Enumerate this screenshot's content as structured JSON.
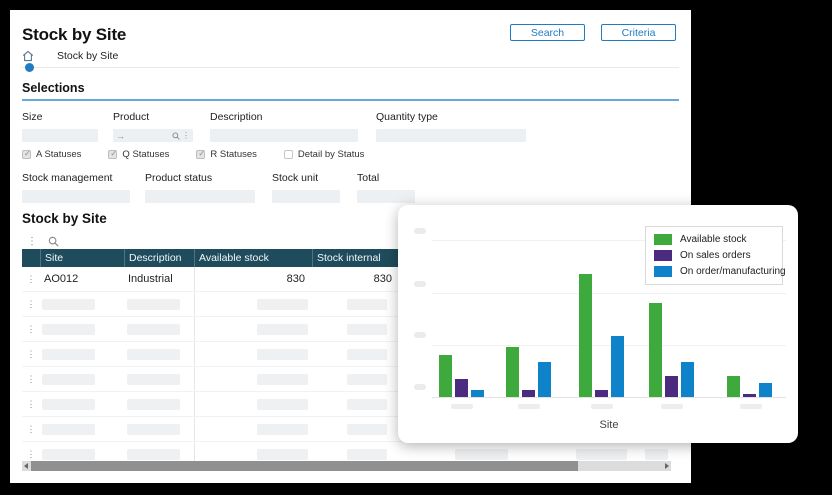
{
  "app": {
    "title": "Stock by Site"
  },
  "toolbar": {
    "search_label": "Search",
    "criteria_label": "Criteria"
  },
  "breadcrumb": {
    "label": "Stock by Site"
  },
  "selections": {
    "heading": "Selections",
    "row1": [
      {
        "label": "Size",
        "value": ""
      },
      {
        "label": "Product",
        "value": "",
        "leading_icon": "arrow-right-icon",
        "trailing_icons": [
          "search-icon",
          "kebab-menu-icon"
        ]
      },
      {
        "label": "Description",
        "value": ""
      },
      {
        "label": "Quantity type",
        "value": ""
      }
    ],
    "checkboxes": [
      {
        "label": "A Statuses",
        "checked": true
      },
      {
        "label": "Q Statuses",
        "checked": true
      },
      {
        "label": "R Statuses",
        "checked": true
      },
      {
        "label": "Detail by Status",
        "checked": false
      }
    ],
    "row2": [
      {
        "label": "Stock management",
        "value": ""
      },
      {
        "label": "Product status",
        "value": ""
      },
      {
        "label": "Stock unit",
        "value": ""
      },
      {
        "label": "Total",
        "value": ""
      }
    ]
  },
  "grid": {
    "heading": "Stock by Site",
    "columns": [
      "Site",
      "Description",
      "Available stock",
      "Stock internal"
    ],
    "rows": [
      {
        "cells": [
          "AO012",
          "Industrial",
          "830",
          "830"
        ]
      }
    ],
    "empty_row_count": 7
  },
  "chart_data": {
    "type": "bar",
    "title": "",
    "xlabel": "Site",
    "ylabel": "",
    "ylim": [
      0,
      600
    ],
    "gridline_step": 200,
    "legend_position": "top-right",
    "categories": [
      "",
      "",
      "",
      "",
      ""
    ],
    "y_tick_labels": [
      "",
      "",
      "",
      ""
    ],
    "series": [
      {
        "name": "Available stock",
        "color": "#3EA93C",
        "values": [
          160,
          190,
          470,
          360,
          80
        ]
      },
      {
        "name": "On sales orders",
        "color": "#4A2B80",
        "values": [
          70,
          25,
          25,
          80,
          10
        ]
      },
      {
        "name": "On order/manufacturing",
        "color": "#0E83C9",
        "values": [
          25,
          135,
          235,
          135,
          55
        ]
      }
    ]
  },
  "colors": {
    "accent_blue": "#1E7DC2",
    "table_header_teal": "#1F4C5C"
  }
}
